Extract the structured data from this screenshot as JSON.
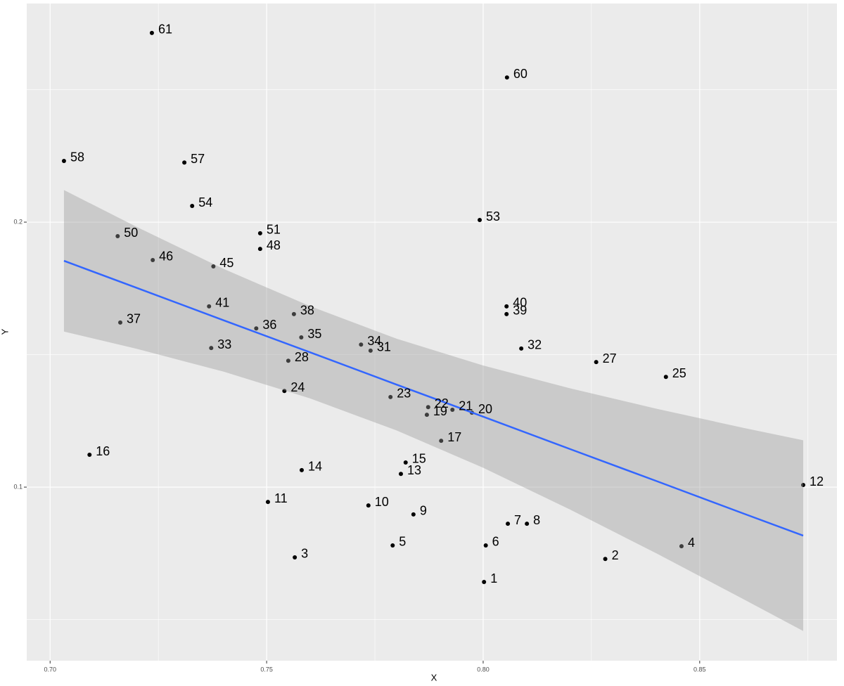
{
  "chart_data": {
    "type": "scatter",
    "x_label": "X",
    "y_label": "Y",
    "labels": [
      "1",
      "2",
      "3",
      "4",
      "5",
      "6",
      "7",
      "8",
      "9",
      "10",
      "11",
      "12",
      "13",
      "14",
      "15",
      "16",
      "17",
      "19",
      "20",
      "21",
      "22",
      "23",
      "24",
      "25",
      "27",
      "28",
      "31",
      "32",
      "33",
      "34",
      "35",
      "36",
      "37",
      "38",
      "39",
      "40",
      "41",
      "45",
      "46",
      "48",
      "50",
      "51",
      "53",
      "54",
      "57",
      "58",
      "60",
      "61"
    ],
    "x": [
      0.8002,
      0.8282,
      0.7565,
      0.8458,
      0.7791,
      0.8006,
      0.8057,
      0.8101,
      0.7839,
      0.7735,
      0.7503,
      0.8739,
      0.781,
      0.7581,
      0.7821,
      0.7091,
      0.7903,
      0.787,
      0.7974,
      0.7929,
      0.7873,
      0.7786,
      0.7541,
      0.8422,
      0.8261,
      0.755,
      0.774,
      0.8088,
      0.7372,
      0.7718,
      0.758,
      0.7476,
      0.7162,
      0.7563,
      0.8054,
      0.8054,
      0.7367,
      0.7377,
      0.7237,
      0.7485,
      0.7156,
      0.7485,
      0.7992,
      0.7328,
      0.731,
      0.7032,
      0.8055,
      0.7235
    ],
    "y": [
      0.0642,
      0.0729,
      0.0735,
      0.0777,
      0.078,
      0.078,
      0.0862,
      0.0862,
      0.0897,
      0.0931,
      0.0944,
      0.1008,
      0.105,
      0.1064,
      0.1093,
      0.1122,
      0.1175,
      0.1273,
      0.1281,
      0.1292,
      0.1302,
      0.134,
      0.1363,
      0.1416,
      0.1472,
      0.1477,
      0.1515,
      0.1523,
      0.1525,
      0.1538,
      0.1565,
      0.1599,
      0.1621,
      0.1653,
      0.1653,
      0.1682,
      0.1682,
      0.1833,
      0.1857,
      0.1899,
      0.1947,
      0.1958,
      0.2008,
      0.2061,
      0.2225,
      0.2231,
      0.2546,
      0.2714
    ],
    "point_color": "#000000",
    "fit": {
      "color": "#3366ff",
      "band_color": "#999999",
      "x": [
        0.7032,
        0.72,
        0.74,
        0.76,
        0.78,
        0.8,
        0.82,
        0.84,
        0.86,
        0.8739
      ],
      "y": [
        0.1854,
        0.1752,
        0.163,
        0.1509,
        0.1387,
        0.1266,
        0.1144,
        0.1023,
        0.0901,
        0.0817
      ],
      "upper": [
        0.2121,
        0.1982,
        0.1824,
        0.1683,
        0.156,
        0.1459,
        0.1373,
        0.1296,
        0.1224,
        0.1177
      ],
      "lower": [
        0.1587,
        0.1522,
        0.1436,
        0.1335,
        0.1214,
        0.1073,
        0.0916,
        0.075,
        0.0578,
        0.0457
      ]
    },
    "xlim": [
      0.6946,
      0.8817
    ],
    "ylim": [
      0.0345,
      0.2825
    ],
    "xticks": [
      {
        "value": 0.7,
        "label": "0.70"
      },
      {
        "value": 0.75,
        "label": "0.75"
      },
      {
        "value": 0.8,
        "label": "0.80"
      },
      {
        "value": 0.85,
        "label": "0.85"
      }
    ],
    "yticks": [
      0.1,
      0.2
    ],
    "x_minor_ticks": [
      0.725,
      0.775,
      0.825,
      0.875
    ],
    "y_minor_ticks": [
      0.05,
      0.15,
      0.25
    ],
    "grid": true
  }
}
